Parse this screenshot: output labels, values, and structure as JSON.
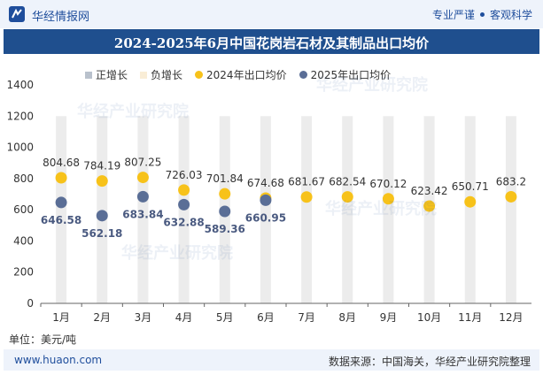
{
  "header": {
    "brand": "华经情报网",
    "slogan_left": "专业严谨",
    "slogan_right": "客观科学"
  },
  "footer": {
    "website": "www.huaon.com",
    "source": "数据来源：中国海关，华经产业研究院整理"
  },
  "watermark": "华经产业研究院",
  "chart_data": {
    "type": "scatter",
    "title": "2024-2025年6月中国花岗岩石材及其制品出口均价",
    "unit": "单位：美元/吨",
    "categories": [
      "1月",
      "2月",
      "3月",
      "4月",
      "5月",
      "6月",
      "7月",
      "8月",
      "9月",
      "10月",
      "11月",
      "12月"
    ],
    "ylim": [
      0,
      1400
    ],
    "yticks": [
      0,
      200,
      400,
      600,
      800,
      1000,
      1200,
      1400
    ],
    "legend": [
      {
        "name": "正增长",
        "color": "#b9c1cc",
        "shape": "square"
      },
      {
        "name": "负增长",
        "color": "#f9edd6",
        "shape": "square"
      },
      {
        "name": "2024年出口均价",
        "color": "#f7c21a",
        "shape": "circle"
      },
      {
        "name": "2025年出口均价",
        "color": "#5a6e96",
        "shape": "circle"
      }
    ],
    "series": [
      {
        "name": "2024年出口均价",
        "color": "#f7c21a",
        "values": [
          804.68,
          784.19,
          807.25,
          726.03,
          701.84,
          674.68,
          681.67,
          682.54,
          670.12,
          623.42,
          650.71,
          683.2
        ],
        "labels": [
          "804.68",
          "784.19",
          "807.25",
          "726.03",
          "701.84",
          "674.68",
          "681.67",
          "682.54",
          "670.12",
          "623.42",
          "650.71",
          "683.2"
        ]
      },
      {
        "name": "2025年出口均价",
        "color": "#5a6e96",
        "values": [
          646.58,
          562.18,
          683.84,
          632.88,
          589.36,
          660.95
        ],
        "labels": [
          "646.58",
          "562.18",
          "683.84",
          "632.88",
          "589.36",
          "660.95"
        ]
      }
    ],
    "growth_bar": {
      "color_negative": "#f9edd6",
      "color_positive": "#b9c1cc"
    },
    "legend_placement": "top",
    "grid": false
  }
}
